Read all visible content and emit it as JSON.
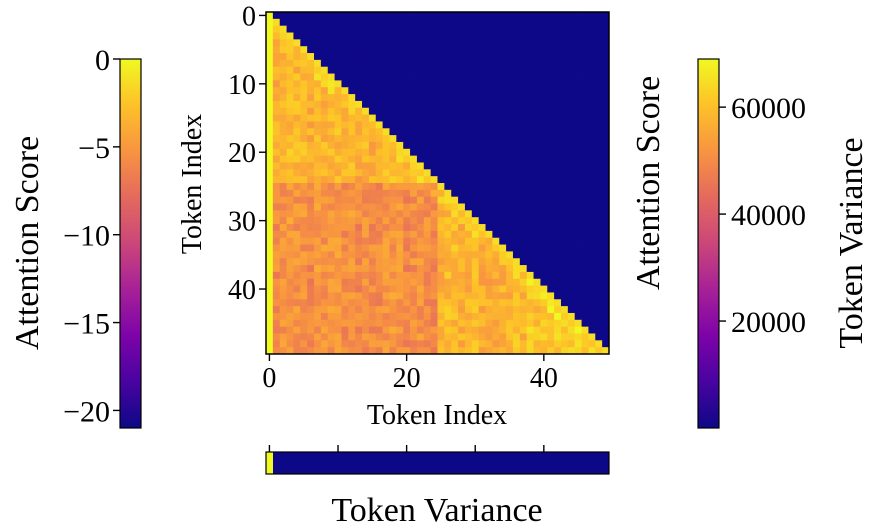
{
  "chart_data": [
    {
      "type": "heatmap",
      "title": "",
      "xlabel": "Token Index",
      "ylabel": "Token Index",
      "size": 50,
      "mask": "upper-triangle",
      "xticks": [
        0,
        20,
        40
      ],
      "yticks": [
        0,
        10,
        20,
        30,
        40
      ],
      "colormap": "plasma",
      "colorbar_label": "Attention Score",
      "value_range": [
        -21,
        0
      ],
      "description_values": {
        "masked_value": -21,
        "first_column": 0,
        "diagonal": -1.3,
        "early_block_rows_0_24": -3.5,
        "late_block_rows_25_49": -5.5,
        "noise": 1.3
      }
    },
    {
      "type": "heatmap",
      "title": "",
      "label": "Token Variance",
      "size": 50,
      "values_note": "single row; token 0 has max variance (~69000), all others near 0",
      "max_value": 69000,
      "first_token_value": 69000,
      "other_tokens_value": 0
    }
  ],
  "colorbar_left": {
    "label": "Attention Score",
    "ticks": [
      "0",
      "−5",
      "−10",
      "−15",
      "−20"
    ],
    "tick_values": [
      0,
      -5,
      -10,
      -15,
      -20
    ],
    "range": [
      -21,
      0
    ]
  },
  "colorbar_right": {
    "side_label": "Attention Score",
    "label": "Token Variance",
    "ticks": [
      "20000",
      "40000",
      "60000"
    ],
    "tick_values": [
      20000,
      40000,
      60000
    ],
    "range": [
      0,
      69000
    ]
  },
  "heatmap": {
    "xticks": [
      "0",
      "20",
      "40"
    ],
    "yticks": [
      "0",
      "10",
      "20",
      "30",
      "40"
    ],
    "xlabel": "Token Index",
    "ylabel": "Token Index"
  },
  "variance_strip": {
    "label": "Token Variance"
  },
  "colors": {
    "masked": "#0d0887"
  }
}
